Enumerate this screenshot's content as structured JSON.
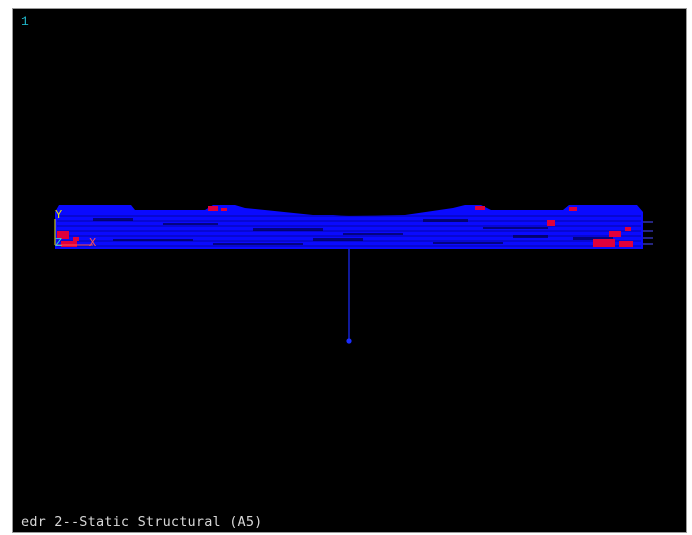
{
  "viewport": {
    "window_number": "1",
    "caption": "edr 2--Static Structural (A5)"
  },
  "triad": {
    "y_label": "Y",
    "z_label": "Z",
    "x_label": "X"
  },
  "colors": {
    "background": "#000000",
    "mesh_elements": "#0000ff",
    "mesh_hotspots": "#e0003c",
    "node_marker": "#1a2cff",
    "window_number": "#1fb5c8",
    "caption_text": "#d8d8d8",
    "axis_y": "#e6e600",
    "axis_x": "#ff5050",
    "axis_z": "#30c8d0"
  }
}
